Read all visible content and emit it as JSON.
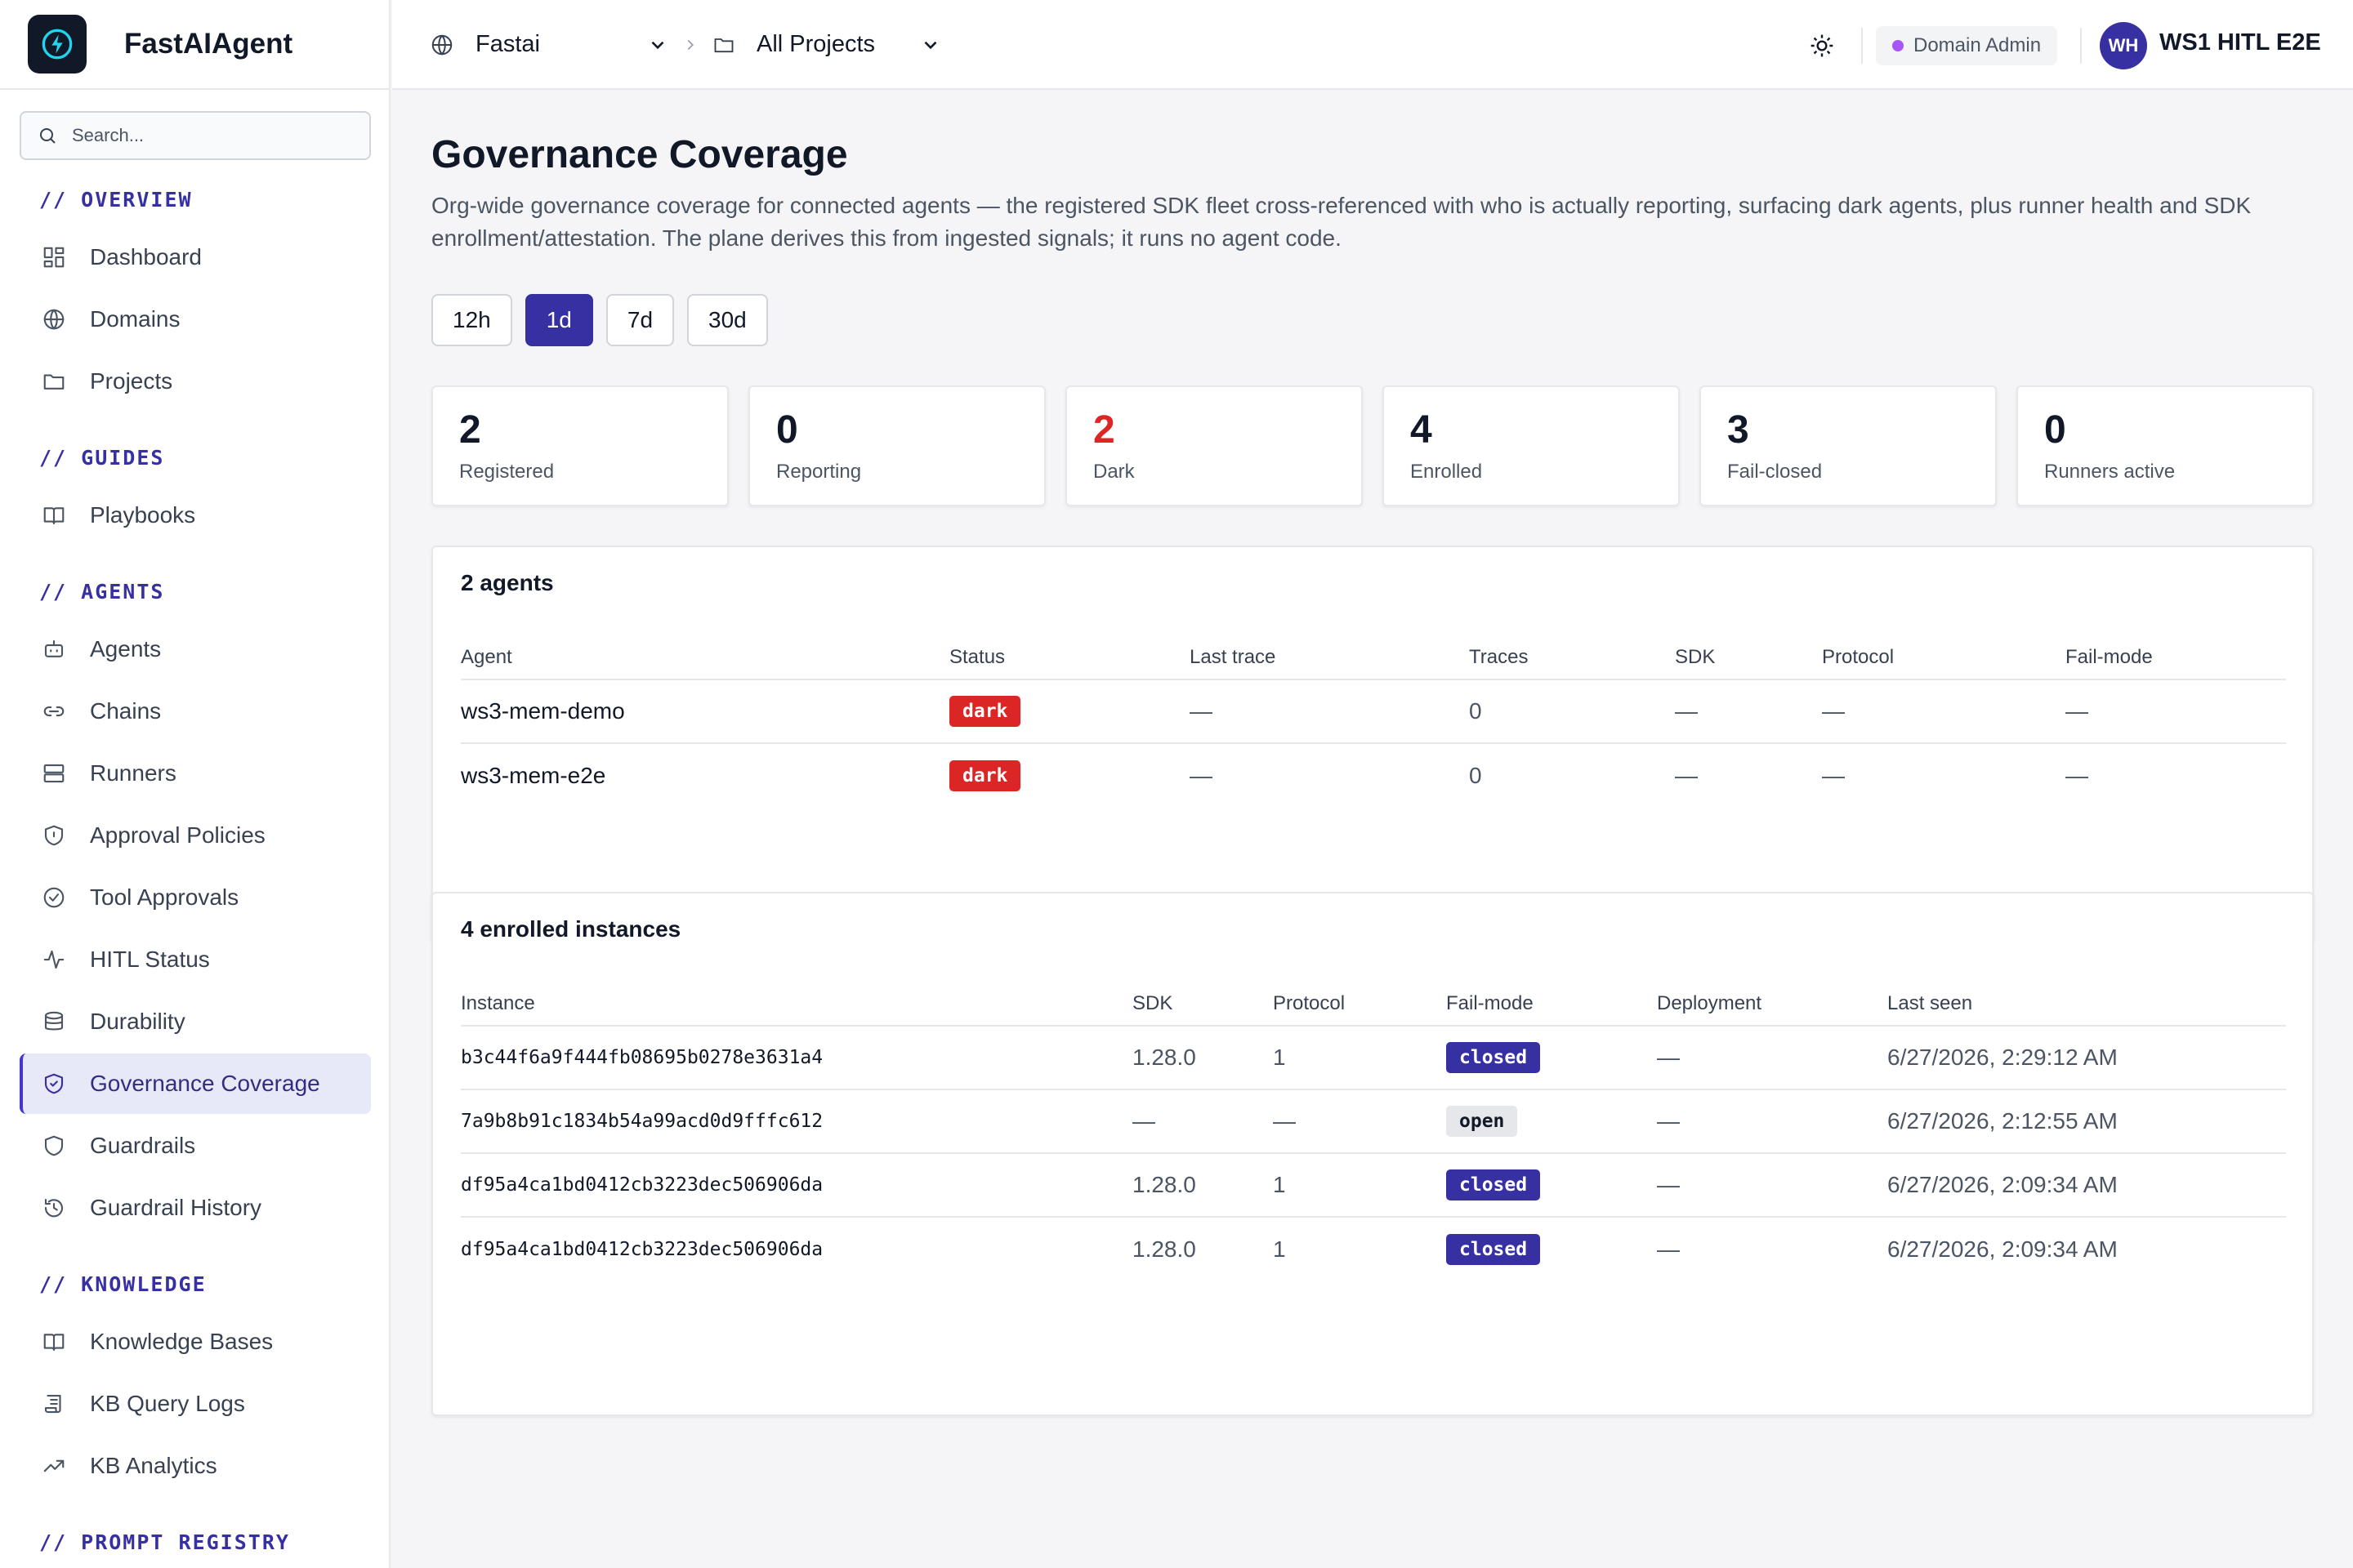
{
  "app": {
    "name": "FastAIAgent"
  },
  "search": {
    "placeholder": "Search..."
  },
  "sidebar": {
    "sections": [
      {
        "title": "// OVERVIEW",
        "items": [
          {
            "label": "Dashboard",
            "icon": "dashboard-icon"
          },
          {
            "label": "Domains",
            "icon": "globe-icon"
          },
          {
            "label": "Projects",
            "icon": "folder-icon"
          }
        ]
      },
      {
        "title": "// GUIDES",
        "items": [
          {
            "label": "Playbooks",
            "icon": "book-icon"
          }
        ]
      },
      {
        "title": "// AGENTS",
        "items": [
          {
            "label": "Agents",
            "icon": "bot-icon"
          },
          {
            "label": "Chains",
            "icon": "link-icon"
          },
          {
            "label": "Runners",
            "icon": "server-icon"
          },
          {
            "label": "Approval Policies",
            "icon": "shield-icon"
          },
          {
            "label": "Tool Approvals",
            "icon": "check-circle-icon"
          },
          {
            "label": "HITL Status",
            "icon": "activity-icon"
          },
          {
            "label": "Durability",
            "icon": "database-icon"
          },
          {
            "label": "Governance Coverage",
            "icon": "shield-check-icon",
            "active": true
          },
          {
            "label": "Guardrails",
            "icon": "shield-outline-icon"
          },
          {
            "label": "Guardrail History",
            "icon": "history-icon"
          }
        ]
      },
      {
        "title": "// KNOWLEDGE",
        "items": [
          {
            "label": "Knowledge Bases",
            "icon": "book-open-icon"
          },
          {
            "label": "KB Query Logs",
            "icon": "scroll-icon"
          },
          {
            "label": "KB Analytics",
            "icon": "trending-up-icon"
          }
        ]
      },
      {
        "title": "// PROMPT REGISTRY",
        "items": []
      }
    ]
  },
  "topbar": {
    "domain": "Fastai",
    "project": "All Projects",
    "role_badge": "Domain Admin",
    "avatar_initials": "WH",
    "user_name": "WS1 HITL E2E"
  },
  "page": {
    "title": "Governance Coverage",
    "description": "Org-wide governance coverage for connected agents — the registered SDK fleet cross-referenced with who is actually reporting, surfacing dark agents, plus runner health and SDK enrollment/attestation. The plane derives this from ingested signals; it runs no agent code.",
    "ranges": [
      "12h",
      "1d",
      "7d",
      "30d"
    ],
    "active_range": "1d"
  },
  "stats": [
    {
      "value": "2",
      "label": "Registered"
    },
    {
      "value": "0",
      "label": "Reporting"
    },
    {
      "value": "2",
      "label": "Dark",
      "color": "#dc2626"
    },
    {
      "value": "4",
      "label": "Enrolled"
    },
    {
      "value": "3",
      "label": "Fail-closed"
    },
    {
      "value": "0",
      "label": "Runners active"
    }
  ],
  "agents": {
    "title": "2 agents",
    "columns": [
      "Agent",
      "Status",
      "Last trace",
      "Traces",
      "SDK",
      "Protocol",
      "Fail-mode"
    ],
    "rows": [
      [
        "ws3-mem-demo",
        "dark",
        "—",
        "0",
        "—",
        "—",
        "—"
      ],
      [
        "ws3-mem-e2e",
        "dark",
        "—",
        "0",
        "—",
        "—",
        "—"
      ]
    ]
  },
  "instances": {
    "title": "4 enrolled instances",
    "columns": [
      "Instance",
      "SDK",
      "Protocol",
      "Fail-mode",
      "Deployment",
      "Last seen"
    ],
    "rows": [
      [
        "b3c44f6a9f444fb08695b0278e3631a4",
        "1.28.0",
        "1",
        "closed",
        "—",
        "6/27/2026, 2:29:12 AM"
      ],
      [
        "7a9b8b91c1834b54a99acd0d9fffc612",
        "—",
        "—",
        "open",
        "—",
        "6/27/2026, 2:12:55 AM"
      ],
      [
        "df95a4ca1bd0412cb3223dec506906da",
        "1.28.0",
        "1",
        "closed",
        "—",
        "6/27/2026, 2:09:34 AM"
      ],
      [
        "df95a4ca1bd0412cb3223dec506906da",
        "1.28.0",
        "1",
        "closed",
        "—",
        "6/27/2026, 2:09:34 AM"
      ]
    ]
  },
  "colors": {
    "accent": "#3730a3",
    "danger": "#dc2626",
    "role_dot": "#a855f7"
  }
}
